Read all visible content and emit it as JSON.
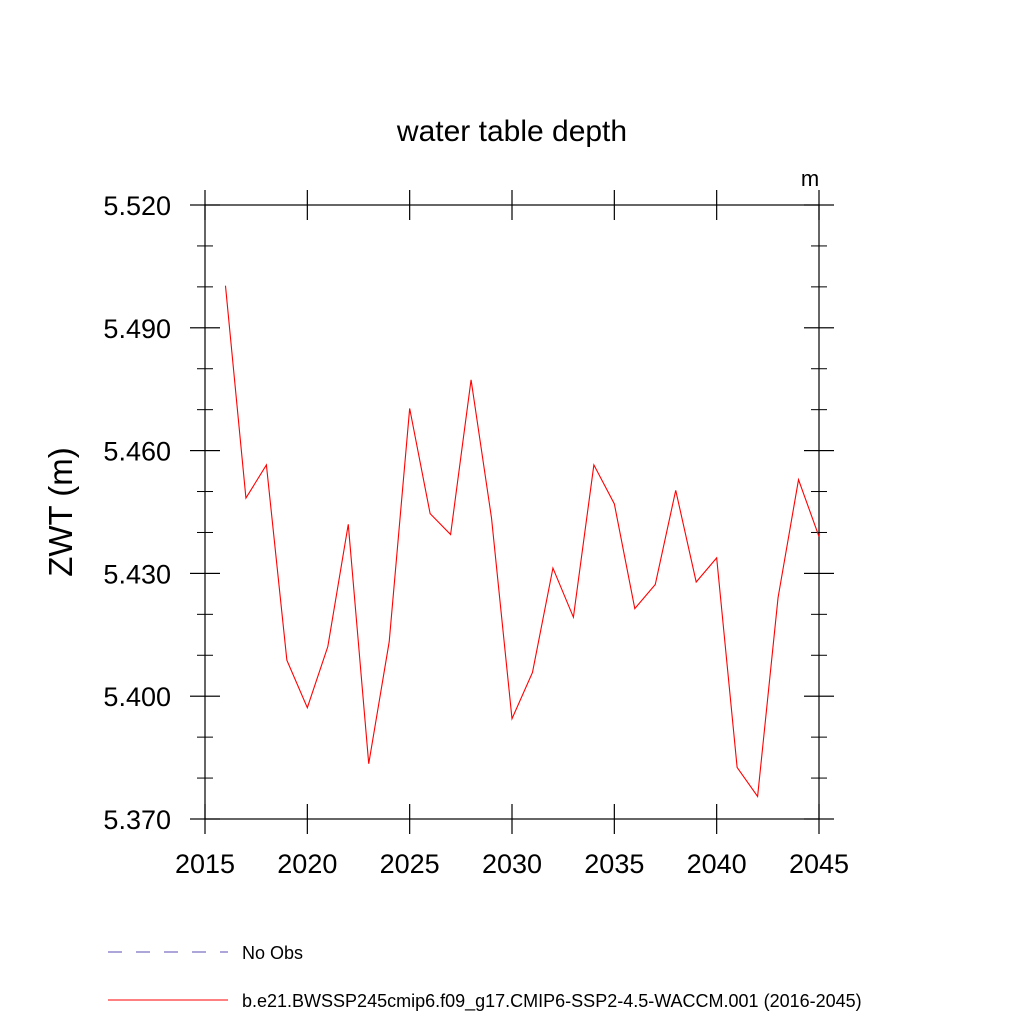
{
  "chart_data": {
    "type": "line",
    "title": "water table depth",
    "units_label": "m",
    "ylabel": "ZWT  (m)",
    "xlabel": "",
    "xlim": [
      2015,
      2045
    ],
    "ylim": [
      5.37,
      5.52
    ],
    "x_major_ticks": [
      2015,
      2020,
      2025,
      2030,
      2035,
      2040,
      2045
    ],
    "x_tick_labels": [
      "2015",
      "2020",
      "2025",
      "2030",
      "2035",
      "2040",
      "2045"
    ],
    "y_major_ticks": [
      5.37,
      5.4,
      5.43,
      5.46,
      5.49,
      5.52
    ],
    "y_tick_labels": [
      "5.370",
      "5.400",
      "5.430",
      "5.460",
      "5.490",
      "5.520"
    ],
    "y_minor_step": 0.01,
    "x_minor_step": 1,
    "grid": false,
    "series": [
      {
        "name": "b.e21.BWSSP245cmip6.f09_g17.CMIP6-SSP2-4.5-WACCM.001 (2016-2045)",
        "color": "#ff0000",
        "style": "solid",
        "x": [
          2016,
          2017,
          2018,
          2019,
          2020,
          2021,
          2022,
          2023,
          2024,
          2025,
          2026,
          2027,
          2028,
          2029,
          2030,
          2031,
          2032,
          2033,
          2034,
          2035,
          2036,
          2037,
          2038,
          2039,
          2040,
          2041,
          2042,
          2043,
          2044,
          2045
        ],
        "values": [
          5.5003,
          5.4484,
          5.4565,
          5.4088,
          5.3972,
          5.4121,
          5.442,
          5.3835,
          5.4133,
          5.4703,
          5.4446,
          5.4395,
          5.4773,
          5.4435,
          5.3945,
          5.4058,
          5.4313,
          5.4193,
          5.4565,
          5.447,
          5.4214,
          5.4273,
          5.4503,
          5.4279,
          5.4338,
          5.3826,
          5.3755,
          5.4241,
          5.4529,
          5.439
        ]
      }
    ],
    "legend": [
      {
        "label": "No Obs",
        "color": "#5a4fb0",
        "style": "dashed"
      },
      {
        "label": "b.e21.BWSSP245cmip6.f09_g17.CMIP6-SSP2-4.5-WACCM.001 (2016-2045)",
        "color": "#ff0000",
        "style": "solid"
      }
    ],
    "legend_position": "bottom-left"
  }
}
